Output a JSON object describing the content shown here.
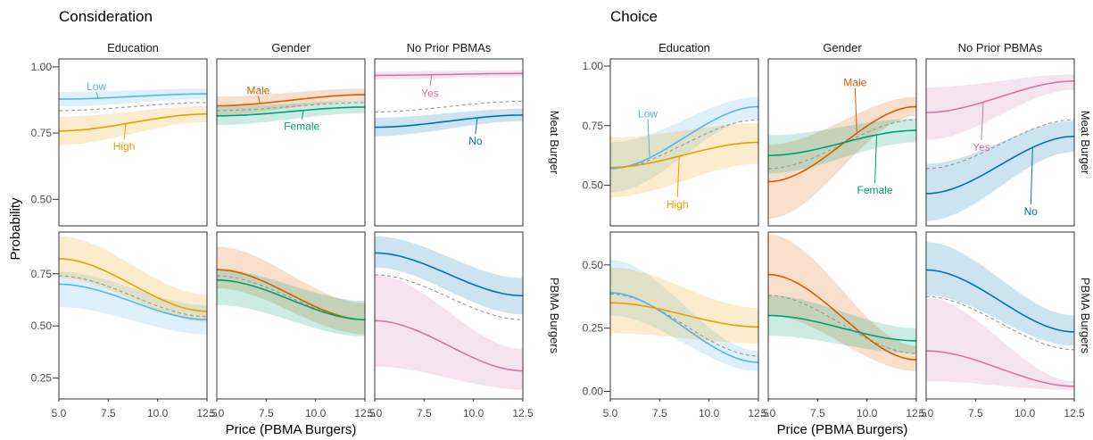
{
  "chart_data": [
    {
      "type": "line",
      "title": "Consideration",
      "xlabel": "Price (PBMA Burgers)",
      "ylabel": "Probability",
      "xlim": [
        5,
        12.5
      ],
      "x_ticks": [
        "5.0",
        "7.5",
        "10.0",
        "12.5"
      ],
      "columns": [
        "Education",
        "Gender",
        "No Prior PBMAs"
      ],
      "rows": [
        "Meat Burger",
        "PBMA Burgers"
      ],
      "row_ylims": [
        [
          0.4,
          1.03
        ],
        [
          0.15,
          0.95
        ]
      ],
      "row_y_ticks": [
        [
          "0.50",
          "0.75",
          "1.00"
        ],
        [
          "0.25",
          "0.50",
          "0.75"
        ]
      ],
      "colors": {
        "Low": "#56B4E9",
        "High": "#E69F00",
        "Male": "#D55E00",
        "Female": "#009E73",
        "Yes": "#CC79A7",
        "No": "#0072B2",
        "average": "#999999"
      },
      "panels": [
        {
          "row": 0,
          "col": 0,
          "average": [
            0.835,
            0.865
          ],
          "series": [
            {
              "name": "Low",
              "start": 0.878,
              "end": 0.898,
              "band_start": [
                0.85,
                0.905
              ],
              "band_end": [
                0.878,
                0.918
              ],
              "label_x": 6.9,
              "label_y": 0.925
            },
            {
              "name": "High",
              "start": 0.758,
              "end": 0.822,
              "band_start": [
                0.705,
                0.812
              ],
              "band_end": [
                0.792,
                0.852
              ],
              "label_x": 8.3,
              "label_y": 0.7
            }
          ]
        },
        {
          "row": 0,
          "col": 1,
          "average": [
            0.835,
            0.865
          ],
          "series": [
            {
              "name": "Male",
              "start": 0.853,
              "end": 0.895,
              "band_start": [
                0.818,
                0.888
              ],
              "band_end": [
                0.872,
                0.918
              ],
              "label_x": 7.1,
              "label_y": 0.91
            },
            {
              "name": "Female",
              "start": 0.815,
              "end": 0.848,
              "band_start": [
                0.78,
                0.85
              ],
              "band_end": [
                0.825,
                0.872
              ],
              "label_x": 9.3,
              "label_y": 0.775
            }
          ]
        },
        {
          "row": 0,
          "col": 2,
          "average": [
            0.83,
            0.87
          ],
          "series": [
            {
              "name": "Yes",
              "start": 0.968,
              "end": 0.975,
              "band_start": [
                0.952,
                0.982
              ],
              "band_end": [
                0.962,
                0.988
              ],
              "label_x": 7.8,
              "label_y": 0.9
            },
            {
              "name": "No",
              "start": 0.772,
              "end": 0.818,
              "band_start": [
                0.738,
                0.808
              ],
              "band_end": [
                0.795,
                0.842
              ],
              "label_x": 10.1,
              "label_y": 0.72
            }
          ]
        },
        {
          "row": 1,
          "col": 0,
          "average": [
            0.74,
            0.545
          ],
          "series": [
            {
              "name": "Low",
              "start": 0.7,
              "end": 0.53,
              "band_start": [
                0.59,
                0.76
              ],
              "band_end": [
                0.46,
                0.6
              ]
            },
            {
              "name": "High",
              "start": 0.822,
              "end": 0.57,
              "band_start": [
                0.73,
                0.93
              ],
              "band_end": [
                0.52,
                0.65
              ]
            }
          ]
        },
        {
          "row": 1,
          "col": 1,
          "average": [
            0.74,
            0.53
          ],
          "series": [
            {
              "name": "Male",
              "start": 0.77,
              "end": 0.53,
              "band_start": [
                0.68,
                0.88
              ],
              "band_end": [
                0.46,
                0.61
              ]
            },
            {
              "name": "Female",
              "start": 0.72,
              "end": 0.53,
              "band_start": [
                0.6,
                0.77
              ],
              "band_end": [
                0.45,
                0.62
              ]
            }
          ]
        },
        {
          "row": 1,
          "col": 2,
          "average": [
            0.745,
            0.53
          ],
          "series": [
            {
              "name": "Yes",
              "start": 0.525,
              "end": 0.285,
              "band_start": [
                0.305,
                0.745
              ],
              "band_end": [
                0.195,
                0.39
              ]
            },
            {
              "name": "No",
              "start": 0.85,
              "end": 0.645,
              "band_start": [
                0.78,
                0.93
              ],
              "band_end": [
                0.555,
                0.73
              ]
            }
          ]
        }
      ]
    },
    {
      "type": "line",
      "title": "Choice",
      "xlabel": "Price (PBMA Burgers)",
      "ylabel": "",
      "xlim": [
        5,
        12.5
      ],
      "x_ticks": [
        "5.0",
        "7.5",
        "10.0",
        "12.5"
      ],
      "columns": [
        "Education",
        "Gender",
        "No Prior PBMAs"
      ],
      "rows": [
        "Meat Burger",
        "PBMA Burgers"
      ],
      "row_ylims": [
        [
          0.33,
          1.03
        ],
        [
          -0.03,
          0.63
        ]
      ],
      "row_y_ticks": [
        [
          "0.50",
          "0.75",
          "1.00"
        ],
        [
          "0.00",
          "0.25",
          "0.50"
        ]
      ],
      "colors": {
        "Low": "#56B4E9",
        "High": "#E69F00",
        "Male": "#D55E00",
        "Female": "#009E73",
        "Yes": "#CC79A7",
        "No": "#0072B2",
        "average": "#999999"
      },
      "panels": [
        {
          "row": 0,
          "col": 0,
          "average": [
            0.57,
            0.775
          ],
          "series": [
            {
              "name": "Low",
              "start": 0.57,
              "end": 0.83,
              "band_start": [
                0.47,
                0.68
              ],
              "band_end": [
                0.78,
                0.87
              ],
              "label_x": 6.9,
              "label_y": 0.8
            },
            {
              "name": "High",
              "start": 0.575,
              "end": 0.68,
              "band_start": [
                0.45,
                0.7
              ],
              "band_end": [
                0.59,
                0.76
              ],
              "label_x": 8.4,
              "label_y": 0.42
            }
          ]
        },
        {
          "row": 0,
          "col": 1,
          "average": [
            0.57,
            0.775
          ],
          "series": [
            {
              "name": "Male",
              "start": 0.515,
              "end": 0.83,
              "band_start": [
                0.36,
                0.67
              ],
              "band_end": [
                0.79,
                0.87
              ],
              "label_x": 9.4,
              "label_y": 0.93
            },
            {
              "name": "Female",
              "start": 0.625,
              "end": 0.73,
              "band_start": [
                0.55,
                0.71
              ],
              "band_end": [
                0.68,
                0.78
              ],
              "label_x": 10.4,
              "label_y": 0.48
            }
          ]
        },
        {
          "row": 0,
          "col": 2,
          "average": [
            0.57,
            0.775
          ],
          "series": [
            {
              "name": "Yes",
              "start": 0.805,
              "end": 0.937,
              "band_start": [
                0.69,
                0.91
              ],
              "band_end": [
                0.9,
                0.965
              ],
              "label_x": 7.8,
              "label_y": 0.66
            },
            {
              "name": "No",
              "start": 0.465,
              "end": 0.705,
              "band_start": [
                0.35,
                0.59
              ],
              "band_end": [
                0.64,
                0.77
              ],
              "label_x": 10.3,
              "label_y": 0.39
            }
          ]
        },
        {
          "row": 1,
          "col": 0,
          "average": [
            0.385,
            0.14
          ],
          "series": [
            {
              "name": "Low",
              "start": 0.39,
              "end": 0.115,
              "band_start": [
                0.3,
                0.52
              ],
              "band_end": [
                0.08,
                0.16
              ]
            },
            {
              "name": "High",
              "start": 0.35,
              "end": 0.255,
              "band_start": [
                0.23,
                0.49
              ],
              "band_end": [
                0.19,
                0.33
              ]
            }
          ]
        },
        {
          "row": 1,
          "col": 1,
          "average": [
            0.38,
            0.15
          ],
          "series": [
            {
              "name": "Male",
              "start": 0.462,
              "end": 0.125,
              "band_start": [
                0.3,
                0.62
              ],
              "band_end": [
                0.08,
                0.18
              ]
            },
            {
              "name": "Female",
              "start": 0.3,
              "end": 0.2,
              "band_start": [
                0.22,
                0.38
              ],
              "band_end": [
                0.15,
                0.25
              ]
            }
          ]
        },
        {
          "row": 1,
          "col": 2,
          "average": [
            0.375,
            0.165
          ],
          "series": [
            {
              "name": "Yes",
              "start": 0.16,
              "end": 0.02,
              "band_start": [
                0.04,
                0.37
              ],
              "band_end": [
                0.005,
                0.04
              ]
            },
            {
              "name": "No",
              "start": 0.48,
              "end": 0.235,
              "band_start": [
                0.38,
                0.59
              ],
              "band_end": [
                0.18,
                0.3
              ]
            }
          ]
        }
      ]
    }
  ]
}
